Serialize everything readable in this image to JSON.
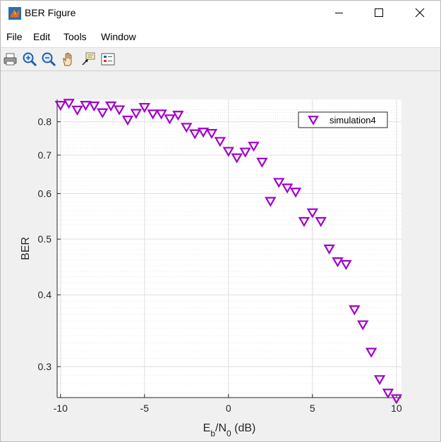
{
  "window": {
    "title": "BER Figure",
    "icon": "matlab-icon",
    "controls": [
      "minimize-icon",
      "maximize-icon",
      "close-icon"
    ]
  },
  "menu": [
    "File",
    "Edit",
    "Tools",
    "Window"
  ],
  "toolbar": [
    "print-icon",
    "zoom-in-icon",
    "zoom-out-icon",
    "pan-hand-icon",
    "data-cursor-icon",
    "legend-icon"
  ],
  "chart_data": {
    "type": "scatter",
    "xlabel": "Eb/N0 (dB)",
    "xlabel_base": "E",
    "xlabel_sub1": "b",
    "xlabel_mid": "/N",
    "xlabel_sub2": "0",
    "xlabel_tail": " (dB)",
    "ylabel": "BER",
    "xlim": [
      -10.2,
      10.3
    ],
    "ylim": [
      0.265,
      0.875
    ],
    "yscale": "log",
    "xticks": [
      -10,
      -5,
      0,
      5,
      10
    ],
    "yticks": [
      0.3,
      0.4,
      0.5,
      0.6,
      0.7,
      0.8
    ],
    "grid": true,
    "minor_grid": true,
    "legend_position": "top-right",
    "marker": "triangle-down",
    "marker_color": "#a100c8",
    "series": [
      {
        "name": "simulation4",
        "x": [
          -10,
          -9.5,
          -9,
          -8.5,
          -8,
          -7.5,
          -7,
          -6.5,
          -6,
          -5.5,
          -5,
          -4.5,
          -4,
          -3.5,
          -3,
          -2.5,
          -2,
          -1.5,
          -1,
          -0.5,
          0,
          0.5,
          1,
          1.5,
          2,
          2.5,
          3,
          3.5,
          4,
          4.5,
          5,
          5.5,
          6,
          6.5,
          7,
          7.5,
          8,
          8.5,
          9,
          9.5,
          10
        ],
        "y": [
          0.855,
          0.862,
          0.839,
          0.855,
          0.853,
          0.83,
          0.853,
          0.84,
          0.806,
          0.828,
          0.848,
          0.826,
          0.826,
          0.81,
          0.822,
          0.783,
          0.763,
          0.768,
          0.764,
          0.74,
          0.711,
          0.693,
          0.709,
          0.726,
          0.681,
          0.582,
          0.628,
          0.614,
          0.604,
          0.537,
          0.556,
          0.537,
          0.481,
          0.457,
          0.452,
          0.377,
          0.355,
          0.318,
          0.285,
          0.27,
          0.264
        ]
      }
    ]
  }
}
